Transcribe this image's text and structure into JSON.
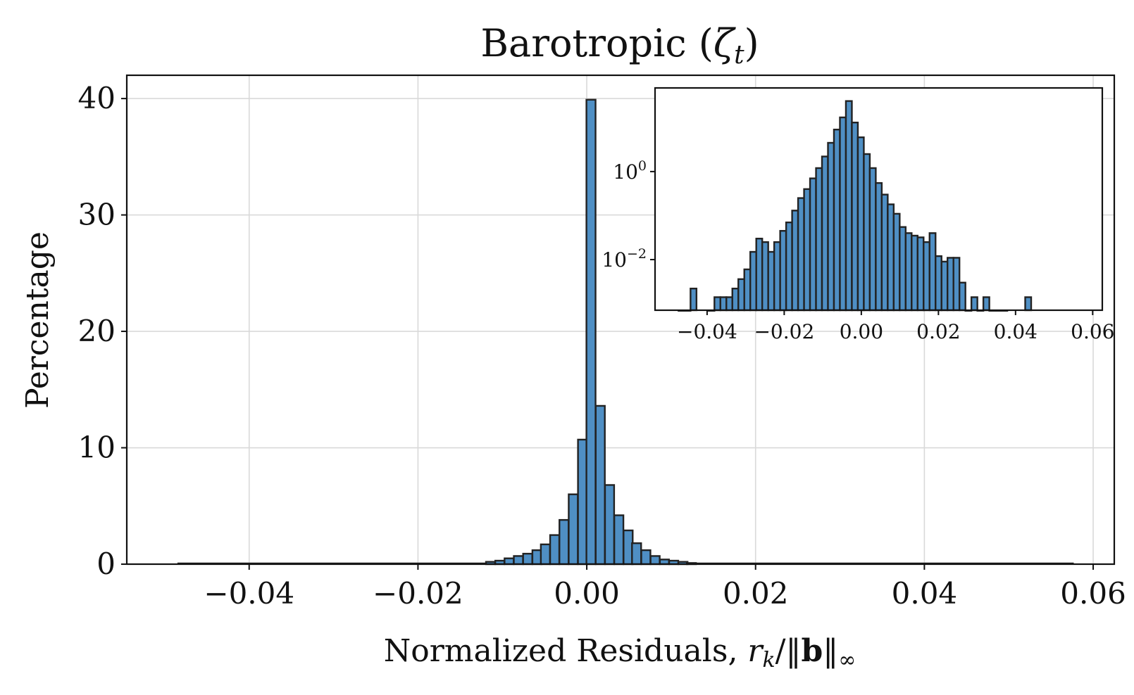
{
  "colors": {
    "bar_fill": "#4f8fc4",
    "bar_edge": "#222222",
    "grid": "#d9d9d9"
  },
  "chart_data": [
    {
      "type": "bar",
      "title": "Barotropic (ζt)",
      "title_main": "Barotropic (",
      "title_symbol": "ζ",
      "title_subscript": "t",
      "title_close": ")",
      "xlabel": "Normalized Residuals, rk/‖b‖∞",
      "xlabel_text": "Normalized Residuals, ",
      "xlabel_r": "r",
      "xlabel_k": "k",
      "xlabel_slash": "/‖",
      "xlabel_b": "b",
      "xlabel_close": "‖",
      "xlabel_inf": "∞",
      "ylabel": "Percentage",
      "xlim": [
        -0.0545,
        0.0625
      ],
      "ylim": [
        0,
        42
      ],
      "grid": true,
      "bin_width": 0.00108,
      "xticks": [
        -0.04,
        -0.02,
        0.0,
        0.02,
        0.04,
        0.06
      ],
      "xtick_labels": [
        "−0.04",
        "−0.02",
        "0.00",
        "0.02",
        "0.04",
        "0.06"
      ],
      "yticks": [
        0,
        10,
        20,
        30,
        40
      ],
      "ytick_labels": [
        "0",
        "10",
        "20",
        "30",
        "40"
      ],
      "x": [
        -0.0114,
        -0.0103,
        -0.0092,
        -0.0081,
        -0.007,
        -0.0059,
        -0.0049,
        -0.0038,
        -0.0027,
        -0.0016,
        -0.0005,
        0.0005,
        0.0016,
        0.0027,
        0.0038,
        0.0049,
        0.0059,
        0.007,
        0.0081,
        0.0092,
        0.0103,
        0.0114,
        0.0124
      ],
      "values": [
        0.2,
        0.3,
        0.5,
        0.7,
        0.9,
        1.2,
        1.7,
        2.5,
        3.8,
        6.0,
        10.7,
        39.9,
        13.6,
        6.8,
        4.2,
        2.9,
        1.8,
        1.2,
        0.7,
        0.4,
        0.3,
        0.2,
        0.1
      ]
    },
    {
      "type": "bar",
      "name": "inset",
      "yscale": "log",
      "xlim": [
        -0.0535,
        0.0625
      ],
      "ylim_log10": [
        -3.15,
        1.9
      ],
      "xticks": [
        -0.04,
        -0.02,
        0.0,
        0.02,
        0.04,
        0.06
      ],
      "xtick_labels": [
        "−0.04",
        "−0.02",
        "0.00",
        "0.02",
        "0.04",
        "0.06"
      ],
      "yticks": [
        -2,
        0
      ],
      "ytick_base": [
        "10",
        "10"
      ],
      "ytick_exp": [
        "−2",
        "0"
      ],
      "bin_width": 0.00155,
      "x_start": -0.0474,
      "values": [
        0.0007,
        0.0007,
        0.0022,
        0,
        0,
        0.0007,
        0.0014,
        0.0014,
        0.0014,
        0.0022,
        0.0036,
        0.006,
        0.015,
        0.03,
        0.025,
        0.015,
        0.025,
        0.045,
        0.07,
        0.13,
        0.25,
        0.4,
        0.7,
        1.2,
        2.2,
        4.5,
        9.0,
        17,
        40,
        13,
        6.0,
        2.5,
        1.2,
        0.55,
        0.3,
        0.18,
        0.11,
        0.055,
        0.04,
        0.035,
        0.032,
        0.025,
        0.04,
        0.012,
        0.009,
        0.011,
        0.011,
        0.003,
        0.0007,
        0.0014,
        0.0007,
        0.0014,
        0.0007,
        0.0007,
        0.0007,
        0,
        0,
        0,
        0.0014
      ]
    }
  ]
}
